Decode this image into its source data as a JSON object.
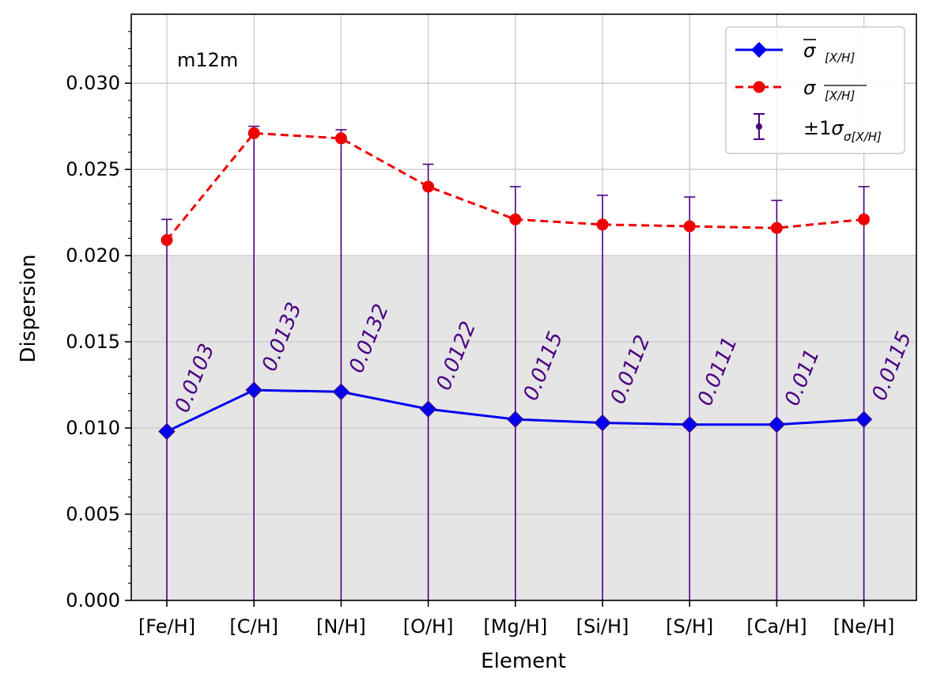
{
  "chart_data": {
    "type": "line",
    "xlabel": "Element",
    "ylabel": "Dispersion",
    "ylim": [
      0,
      0.034
    ],
    "yticks": [
      "0.000",
      "0.005",
      "0.010",
      "0.015",
      "0.020",
      "0.025",
      "0.030"
    ],
    "categories": [
      "[Fe/H]",
      "[C/H]",
      "[N/H]",
      "[O/H]",
      "[Mg/H]",
      "[Si/H]",
      "[S/H]",
      "[Ca/H]",
      "[Ne/H]"
    ],
    "annotation": "m12m",
    "shaded_band": [
      0,
      0.02
    ],
    "grid": true,
    "legend_position": "top-right",
    "series": [
      {
        "name": "σ̄ [X/H]",
        "style": "solid",
        "marker": "diamond",
        "color": "#0000ee",
        "values": [
          0.0098,
          0.0122,
          0.0121,
          0.0111,
          0.0105,
          0.0103,
          0.0102,
          0.0102,
          0.0105
        ]
      },
      {
        "name": "σ [X/H] (mean)",
        "style": "dashed",
        "marker": "circle",
        "color": "#ee0000",
        "values": [
          0.0209,
          0.0271,
          0.0268,
          0.024,
          0.0221,
          0.0218,
          0.0217,
          0.0216,
          0.0221
        ]
      }
    ],
    "errorbars": {
      "name": "±1σ",
      "color": "#4b0082",
      "lower": [
        0,
        0,
        0,
        0,
        0,
        0,
        0,
        0,
        0
      ],
      "upper": [
        0.0221,
        0.0275,
        0.0273,
        0.0253,
        0.024,
        0.0235,
        0.0234,
        0.0232,
        0.024
      ]
    },
    "data_labels": [
      "0.0103",
      "0.0133",
      "0.0132",
      "0.0122",
      "0.0115",
      "0.0112",
      "0.0111",
      "0.011",
      "0.0115"
    ]
  }
}
